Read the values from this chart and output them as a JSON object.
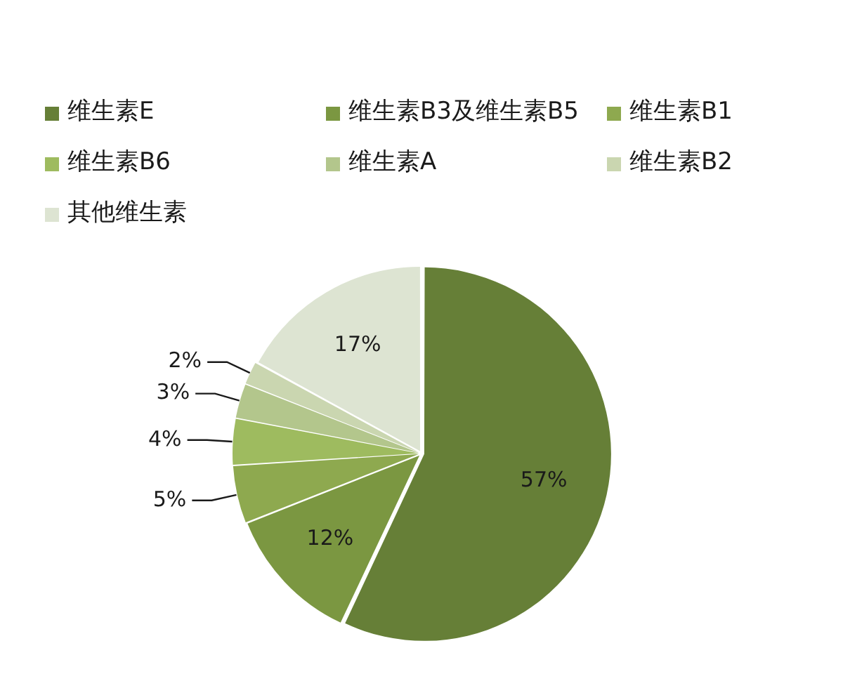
{
  "chart_data": {
    "type": "pie",
    "categories": [
      "维生素E",
      "维生素B3及维生素B5",
      "维生素B1",
      "维生素B6",
      "维生素A",
      "维生素B2",
      "其他维生素"
    ],
    "values": [
      57,
      12,
      5,
      4,
      3,
      2,
      17
    ],
    "colors": [
      "#667f37",
      "#7b9741",
      "#8ea94f",
      "#9ebb5f",
      "#b3c68c",
      "#cad6b0",
      "#dde4d2"
    ],
    "value_labels": [
      "57%",
      "12%",
      "5%",
      "4%",
      "3%",
      "2%",
      "17%"
    ],
    "legend": "top"
  }
}
